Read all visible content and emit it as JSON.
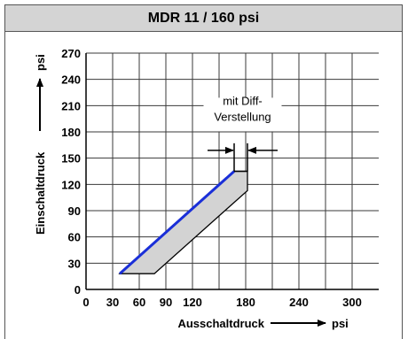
{
  "header": {
    "title": "MDR 11 / 160 psi"
  },
  "chart_data": {
    "type": "area",
    "title": "MDR 11 / 160 psi",
    "xlabel": "Ausschaltdruck",
    "xunit": "psi",
    "ylabel": "Einschaltdruck",
    "yunit": "psi",
    "xlim": [
      0,
      330
    ],
    "ylim": [
      0,
      270
    ],
    "x_ticks": [
      0,
      30,
      60,
      90,
      120,
      180,
      240,
      300
    ],
    "y_ticks": [
      0,
      30,
      60,
      90,
      120,
      150,
      180,
      210,
      240,
      270
    ],
    "grid": true,
    "band": {
      "fill": "#d3d3d3",
      "polygon": [
        [
          38,
          18
        ],
        [
          167,
          135
        ],
        [
          182,
          135
        ],
        [
          182,
          113
        ],
        [
          77,
          18
        ]
      ]
    },
    "series": [
      {
        "color": "#1a2fd8",
        "points": [
          [
            38,
            18
          ],
          [
            167,
            135
          ]
        ]
      }
    ],
    "annotation": {
      "lines": [
        "mit Diff-",
        "Verstellung"
      ],
      "bracket_x": [
        167,
        182
      ],
      "bracket_y": [
        135,
        167
      ]
    }
  }
}
